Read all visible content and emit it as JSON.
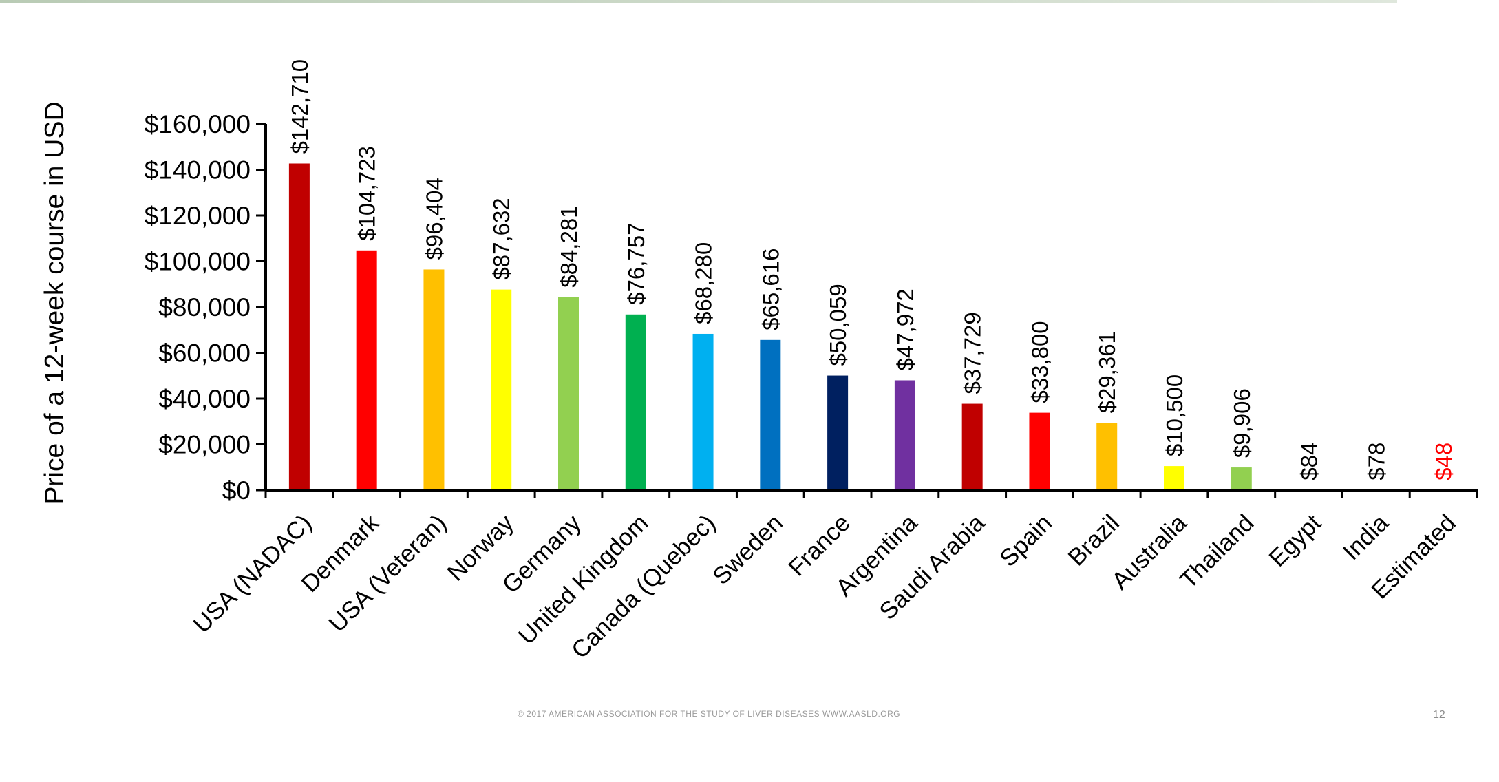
{
  "chart_data": {
    "type": "bar",
    "title": "",
    "xlabel": "",
    "ylabel": "Price of a 12-week course in USD",
    "ylim": [
      0,
      160000
    ],
    "yticks": [
      0,
      20000,
      40000,
      60000,
      80000,
      100000,
      120000,
      140000,
      160000
    ],
    "ytick_labels": [
      "$0",
      "$20,000",
      "$40,000",
      "$60,000",
      "$80,000",
      "$100,000",
      "$120,000",
      "$140,000",
      "$160,000"
    ],
    "grid": false,
    "legend": "none",
    "categories": [
      "USA (NADAC)",
      "Denmark",
      "USA (Veteran)",
      "Norway",
      "Germany",
      "United Kingdom",
      "Canada (Quebec)",
      "Sweden",
      "France",
      "Argentina",
      "Saudi Arabia",
      "Spain",
      "Brazil",
      "Australia",
      "Thailand",
      "Egypt",
      "India",
      "Estimated"
    ],
    "values": [
      142710,
      104723,
      96404,
      87632,
      84281,
      76757,
      68280,
      65616,
      50059,
      47972,
      37729,
      33800,
      29361,
      10500,
      9906,
      84,
      78,
      48
    ],
    "data_labels": [
      "$142,710",
      "$104,723",
      "$96,404",
      "$87,632",
      "$84,281",
      "$76,757",
      "$68,280",
      "$65,616",
      "$50,059",
      "$47,972",
      "$37,729",
      "$33,800",
      "$29,361",
      "$10,500",
      "$9,906",
      "$84",
      "$78",
      "$48"
    ],
    "colors": [
      "#c00000",
      "#ff0000",
      "#ffc000",
      "#ffff00",
      "#92d050",
      "#00b050",
      "#00b0f0",
      "#0070c0",
      "#002060",
      "#7030a0",
      "#c00000",
      "#ff0000",
      "#ffc000",
      "#ffff00",
      "#92d050",
      "#92d050",
      "#92d050",
      "#92d050"
    ],
    "label_colors": [
      "#000000",
      "#000000",
      "#000000",
      "#000000",
      "#000000",
      "#000000",
      "#000000",
      "#000000",
      "#000000",
      "#000000",
      "#000000",
      "#000000",
      "#000000",
      "#000000",
      "#000000",
      "#000000",
      "#000000",
      "#ff0000"
    ]
  },
  "footer": {
    "copyright": "© 2017 AMERICAN ASSOCIATION FOR THE STUDY OF LIVER DISEASES WWW.AASLD.ORG",
    "slide_number": "12"
  }
}
